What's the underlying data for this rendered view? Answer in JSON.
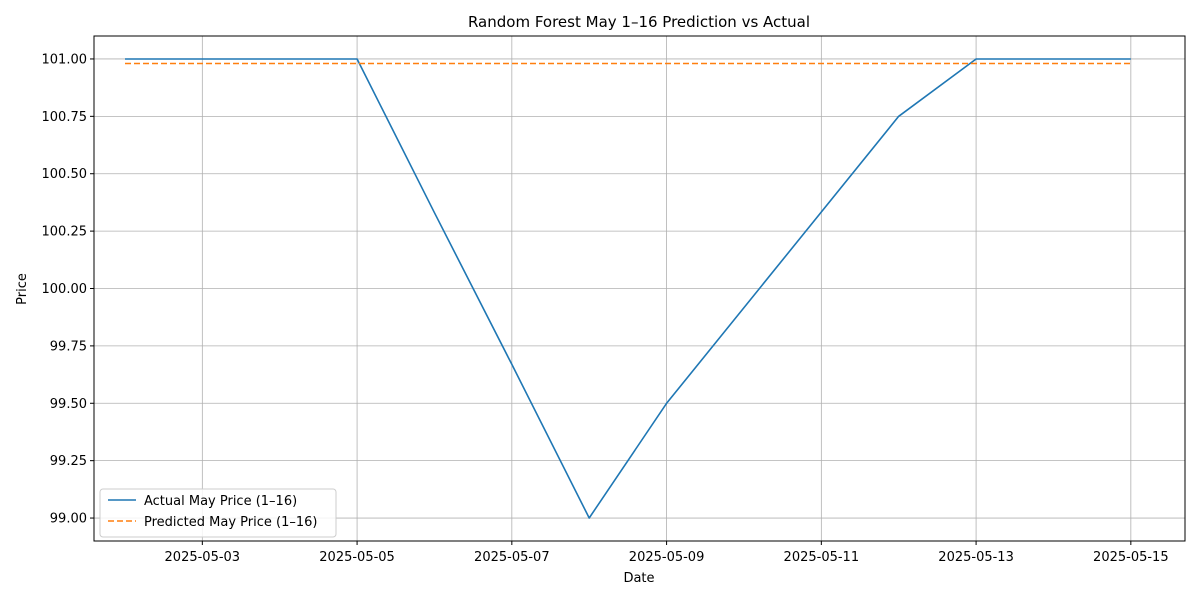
{
  "chart_data": {
    "type": "line",
    "title": "Random Forest May 1–16 Prediction vs Actual",
    "xlabel": "Date",
    "ylabel": "Price",
    "x_axis_type": "date",
    "xlim": [
      "2025-05-01T14:24",
      "2025-05-15T16:48"
    ],
    "ylim": [
      98.9,
      101.1
    ],
    "x_ticks": [
      "2025-05-03",
      "2025-05-05",
      "2025-05-07",
      "2025-05-09",
      "2025-05-11",
      "2025-05-13",
      "2025-05-15"
    ],
    "y_ticks": [
      "99.00",
      "99.25",
      "99.50",
      "99.75",
      "100.00",
      "100.25",
      "100.50",
      "100.75",
      "101.00"
    ],
    "grid": true,
    "legend_position": "lower-left",
    "series": [
      {
        "name": "Actual May Price (1–16)",
        "color": "#1f77b4",
        "style": "solid",
        "x": [
          "2025-05-02",
          "2025-05-05",
          "2025-05-06",
          "2025-05-07",
          "2025-05-08",
          "2025-05-09",
          "2025-05-12",
          "2025-05-13",
          "2025-05-14",
          "2025-05-15"
        ],
        "y": [
          101.0,
          101.0,
          100.33,
          99.67,
          99.0,
          99.5,
          100.75,
          101.0,
          101.0,
          101.0
        ]
      },
      {
        "name": "Predicted May Price (1–16)",
        "color": "#ff7f0e",
        "style": "dashed",
        "x": [
          "2025-05-02",
          "2025-05-05",
          "2025-05-06",
          "2025-05-07",
          "2025-05-08",
          "2025-05-09",
          "2025-05-12",
          "2025-05-13",
          "2025-05-14",
          "2025-05-15"
        ],
        "y": [
          100.98,
          100.98,
          100.98,
          100.98,
          100.98,
          100.98,
          100.98,
          100.98,
          100.98,
          100.98
        ]
      }
    ]
  }
}
